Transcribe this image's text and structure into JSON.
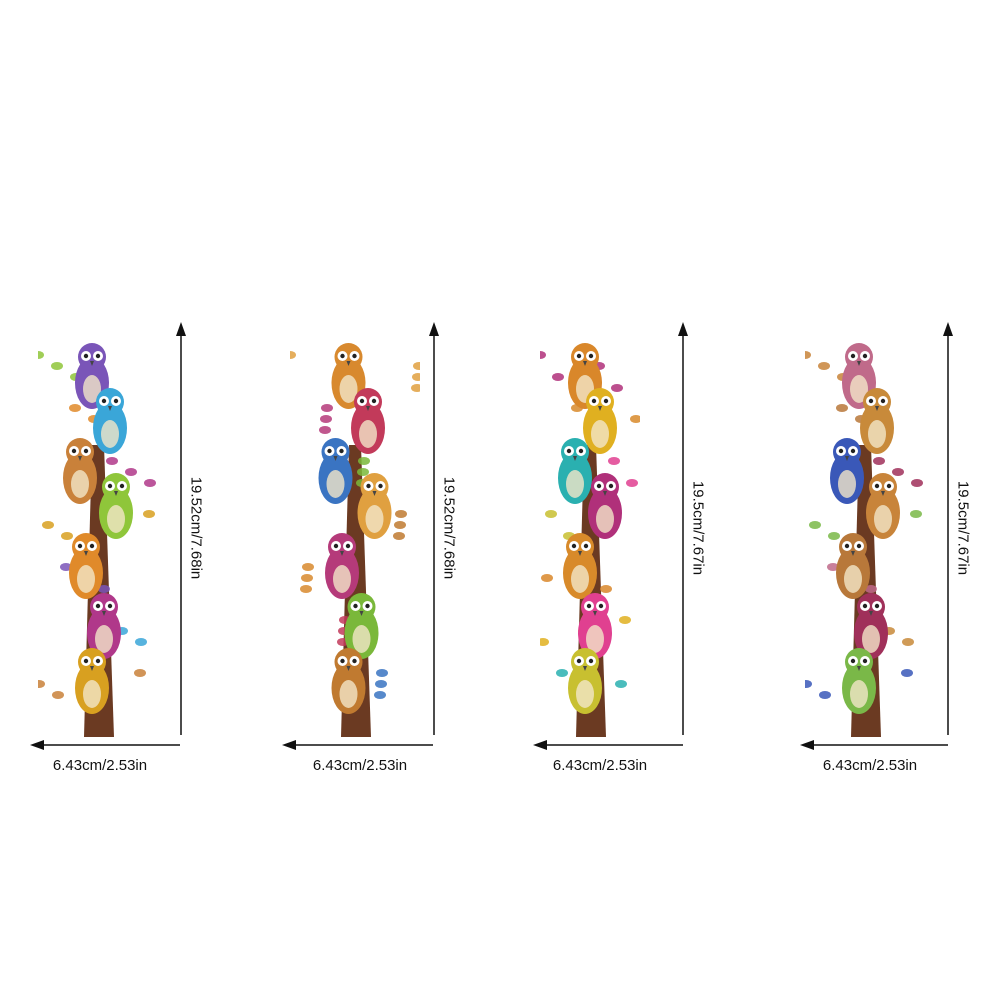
{
  "panels": [
    {
      "height_label": "19.52cm/7.68in",
      "width_label": "6.43cm/2.53in",
      "palette": [
        "#7a55b8",
        "#3aa6d8",
        "#c9813a",
        "#8fc63a",
        "#e08a2a",
        "#b0388a",
        "#d8a020"
      ]
    },
    {
      "height_label": "19.52cm/7.68in",
      "width_label": "6.43cm/2.53in",
      "palette": [
        "#d8892e",
        "#c23a5a",
        "#3a74c2",
        "#e0a040",
        "#b53a7a",
        "#7ab83a",
        "#c07a30"
      ]
    },
    {
      "height_label": "19.5cm/7.67in",
      "width_label": "6.43cm/2.53in",
      "palette": [
        "#d9872a",
        "#e0b020",
        "#2ab0b0",
        "#b0307a",
        "#d88a2a",
        "#e04090",
        "#c8c030"
      ]
    },
    {
      "height_label": "19.5cm/7.67in",
      "width_label": "6.43cm/2.53in",
      "palette": [
        "#c06a8a",
        "#c88a3a",
        "#3a58b8",
        "#c8843a",
        "#b8783a",
        "#a0305a",
        "#7ab848"
      ]
    }
  ],
  "colors": {
    "trunk": "#6b3a22",
    "arrow": "#111111"
  }
}
